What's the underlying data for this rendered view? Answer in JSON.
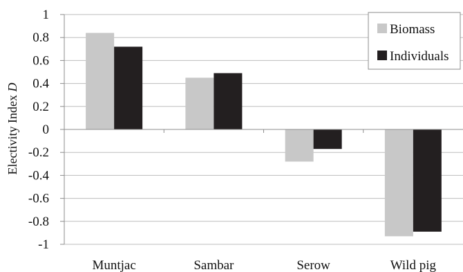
{
  "chart_data": {
    "type": "bar",
    "title": "",
    "xlabel": "",
    "ylabel": "Electivity Index",
    "ylabel_italic_suffix": "D",
    "categories": [
      "Muntjac",
      "Sambar",
      "Serow",
      "Wild pig"
    ],
    "series": [
      {
        "name": "Biomass",
        "values": [
          0.84,
          0.45,
          -0.28,
          -0.93
        ],
        "color": "#c8c8c8"
      },
      {
        "name": "Individuals",
        "values": [
          0.72,
          0.49,
          -0.17,
          -0.89
        ],
        "color": "#231f20"
      }
    ],
    "ylim": [
      -1,
      1
    ],
    "yticks": [
      1,
      0.8,
      0.6,
      0.4,
      0.2,
      0,
      -0.2,
      -0.4,
      -0.6,
      -0.8,
      -1
    ],
    "ytick_labels": [
      "1",
      "0.8",
      "0.6",
      "0.4",
      "0.2",
      "0",
      "-0.2",
      "-0.4",
      "-0.6",
      "-0.8",
      "-1"
    ],
    "grid": true,
    "legend_position": "top-right"
  }
}
